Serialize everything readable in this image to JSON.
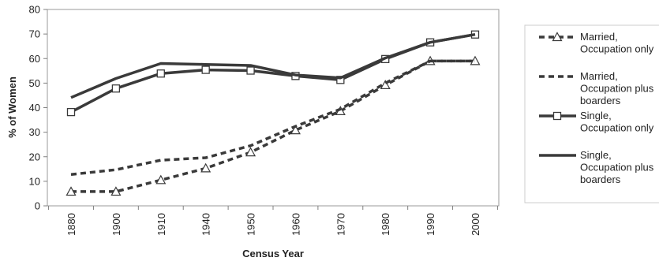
{
  "chart_data": {
    "type": "line",
    "title": "",
    "xlabel": "Census Year",
    "ylabel": "% of Women",
    "ylim": [
      0,
      80
    ],
    "yticks": [
      0,
      10,
      20,
      30,
      40,
      50,
      60,
      70,
      80
    ],
    "grid": false,
    "legend_position": "right",
    "categories": [
      "1880",
      "1900",
      "1910",
      "1940",
      "1950",
      "1960",
      "1970",
      "1980",
      "1990",
      "2000"
    ],
    "series": [
      {
        "name": "Married, Occupation only",
        "legend_lines": [
          "Married,",
          "Occupation only"
        ],
        "style": "dashed",
        "marker": "triangle",
        "values": [
          5.8,
          5.8,
          10.5,
          15.3,
          21.8,
          30.8,
          38.6,
          49.2,
          59.0,
          59.0
        ]
      },
      {
        "name": "Married, Occupation plus boarders",
        "legend_lines": [
          "Married,",
          "Occupation plus",
          "boarders"
        ],
        "style": "dashed",
        "marker": "none",
        "values": [
          12.8,
          14.7,
          18.6,
          19.6,
          24.5,
          32.4,
          39.4,
          50.0,
          59.0,
          59.0
        ]
      },
      {
        "name": "Single, Occupation only",
        "legend_lines": [
          "Single,",
          "Occupation only"
        ],
        "style": "solid",
        "marker": "square",
        "values": [
          38.2,
          47.8,
          53.9,
          55.4,
          55.1,
          52.9,
          51.3,
          59.8,
          66.6,
          69.8
        ]
      },
      {
        "name": "Single, Occupation plus boarders",
        "legend_lines": [
          "Single,",
          "Occupation plus",
          "boarders"
        ],
        "style": "solid",
        "marker": "none",
        "values": [
          44.1,
          51.9,
          58.0,
          57.6,
          57.2,
          53.3,
          52.1,
          60.2,
          66.6,
          69.8
        ]
      }
    ],
    "colors": {
      "line": "#3a3a3a",
      "axis": "#808080",
      "plot_border": "#999999"
    }
  }
}
